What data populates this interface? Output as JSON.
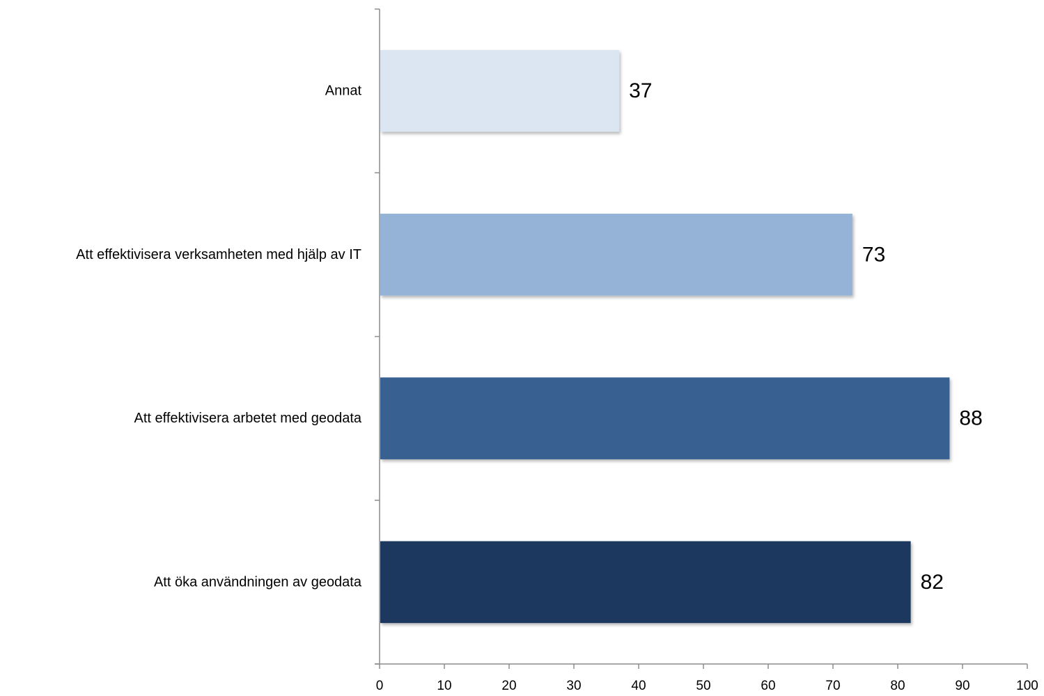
{
  "chart_data": {
    "type": "bar",
    "orientation": "horizontal",
    "categories": [
      "Att öka användningen av geodata",
      "Att effektivisera arbetet med geodata",
      "Att effektivisera verksamheten med hjälp av IT",
      "Annat"
    ],
    "values": [
      82,
      88,
      73,
      37
    ],
    "colors": [
      "#1b385e",
      "#376190",
      "#95b2d7",
      "#dce6f2"
    ],
    "xlim": [
      0,
      100
    ],
    "xticks": [
      0,
      10,
      20,
      30,
      40,
      50,
      60,
      70,
      80,
      90,
      100
    ],
    "data_labels": true,
    "grid": false,
    "legend": "none"
  }
}
